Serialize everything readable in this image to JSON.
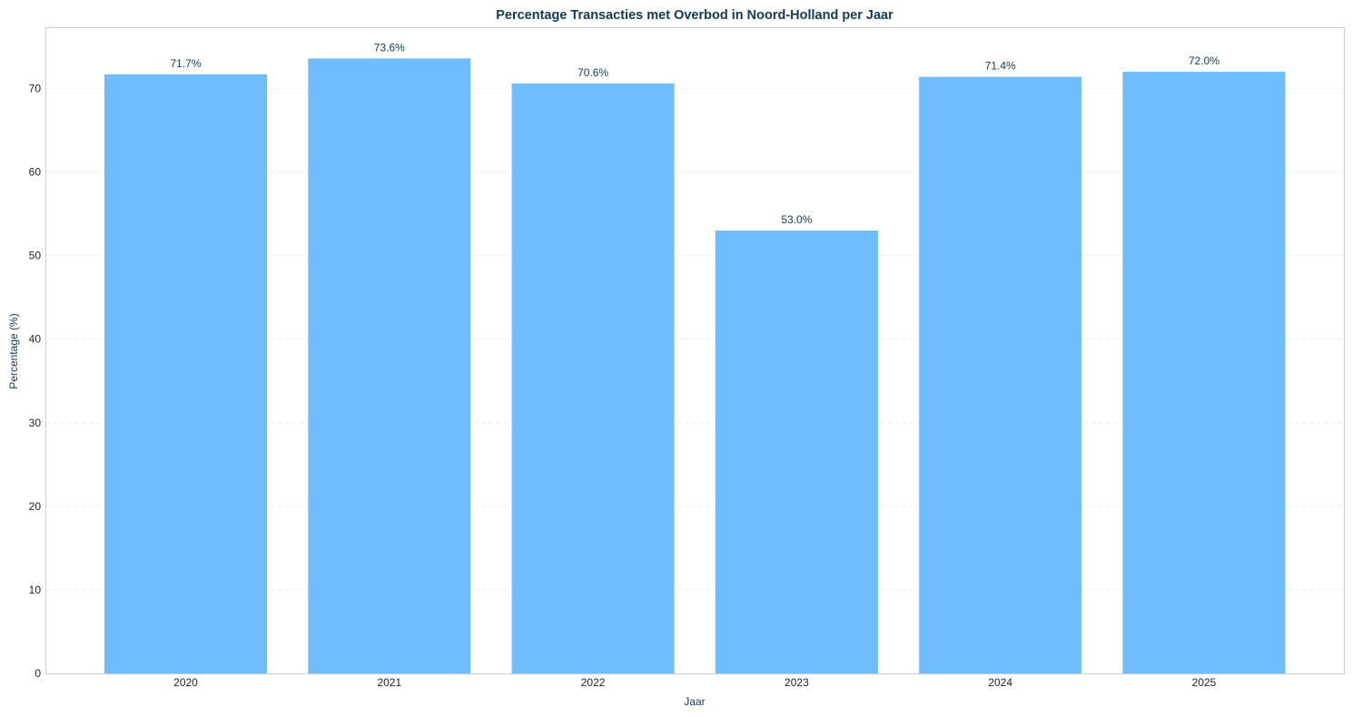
{
  "chart_data": {
    "type": "bar",
    "title": "Percentage Transacties met Overbod in Noord-Holland per Jaar",
    "xlabel": "Jaar",
    "ylabel": "Percentage (%)",
    "categories": [
      "2020",
      "2021",
      "2022",
      "2023",
      "2024",
      "2025"
    ],
    "values": [
      71.7,
      73.6,
      70.6,
      53.0,
      71.4,
      72.0
    ],
    "data_labels": [
      "71.7%",
      "73.6%",
      "70.6%",
      "53.0%",
      "71.4%",
      "72.0%"
    ],
    "ylim": [
      0,
      77.28
    ],
    "yticks": [
      0,
      10,
      20,
      30,
      40,
      50,
      60,
      70
    ],
    "grid": "horizontal dashed",
    "bar_color": "#6fbdfe",
    "title_color": "#123a57"
  }
}
